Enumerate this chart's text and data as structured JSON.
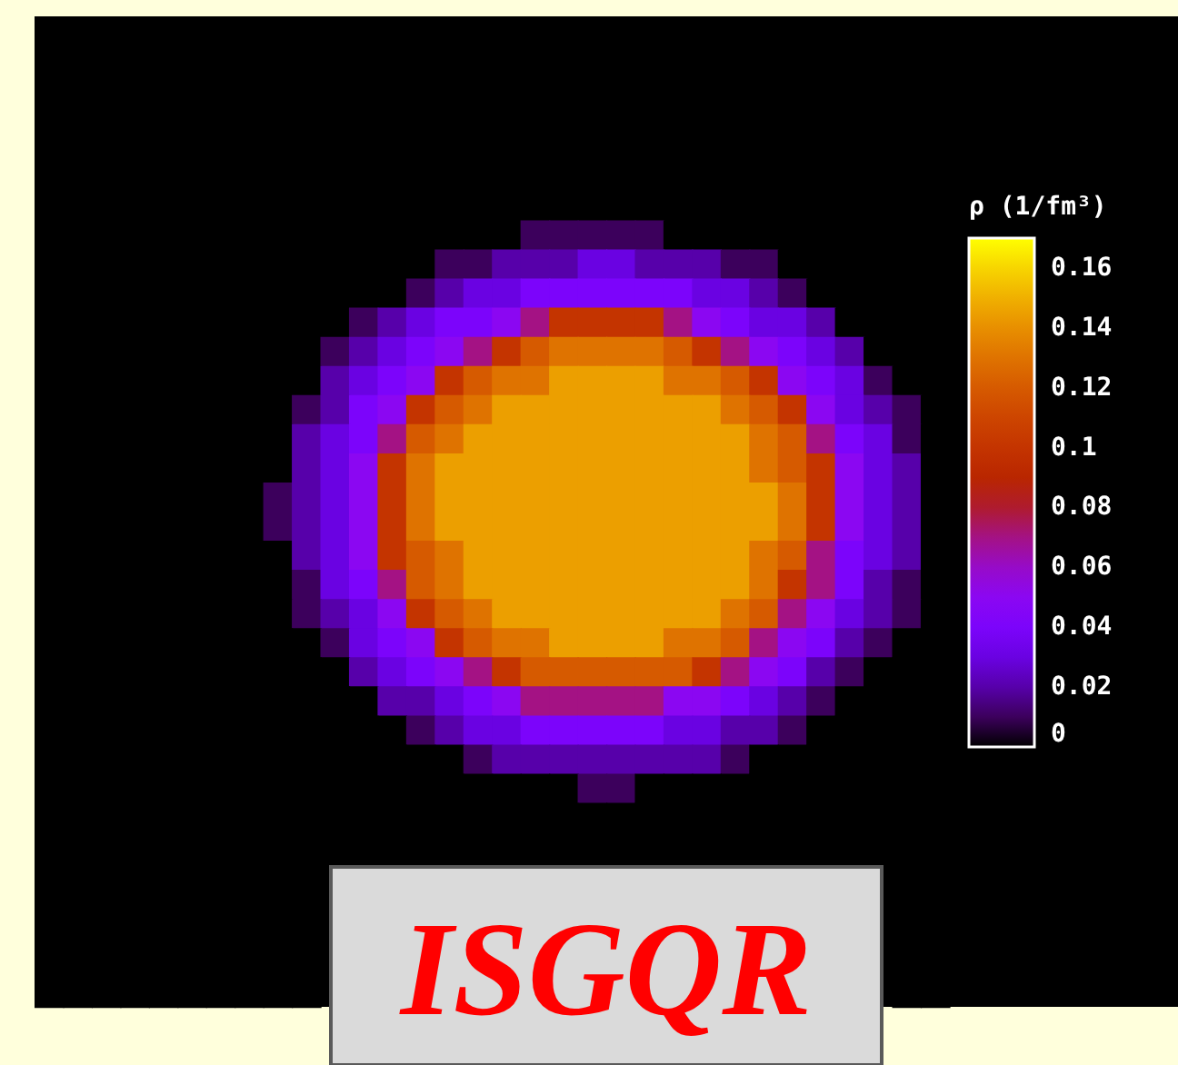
{
  "chart_data": {
    "type": "heatmap",
    "categories": [
      null,
      null,
      null,
      null,
      null,
      null,
      null,
      null,
      null,
      null,
      null,
      null,
      null,
      null,
      null,
      null,
      null,
      null,
      null,
      null,
      null,
      null,
      null,
      null,
      null,
      null,
      null,
      null,
      null,
      null,
      null,
      null
    ],
    "y_categories": [
      null,
      null,
      null,
      null,
      null,
      null,
      null,
      null,
      null,
      null,
      null,
      null,
      null,
      null,
      null,
      null,
      null,
      null,
      null,
      null,
      null,
      null,
      null,
      null,
      null,
      null,
      null,
      null,
      null,
      null,
      null,
      null,
      null,
      null
    ],
    "cells": [
      [
        0,
        0,
        0,
        0,
        0,
        0,
        0,
        0,
        0,
        0,
        0,
        0,
        0,
        0,
        0,
        0,
        0,
        0,
        0,
        0,
        0,
        0,
        0,
        0,
        0,
        0,
        0,
        0,
        0,
        0,
        0,
        0
      ],
      [
        0,
        0,
        0,
        0,
        0,
        0,
        0,
        0,
        0,
        0,
        0,
        0,
        0,
        0,
        0,
        0,
        0,
        0,
        0,
        0,
        0,
        0,
        0,
        0,
        0,
        0,
        0,
        0,
        0,
        0,
        0,
        0
      ],
      [
        0,
        0,
        0,
        0,
        0,
        0,
        0,
        0,
        0,
        0,
        0,
        0,
        0,
        0,
        0,
        0,
        0,
        0,
        0,
        0,
        0,
        0,
        0,
        0,
        0,
        0,
        0,
        0,
        0,
        0,
        0,
        0
      ],
      [
        0,
        0,
        0,
        0,
        0,
        0,
        0,
        0,
        0,
        0,
        0,
        0,
        0,
        0,
        0,
        0,
        0,
        0,
        0,
        0,
        0,
        0,
        0,
        0,
        0,
        0,
        0,
        0,
        0,
        0,
        0,
        0
      ],
      [
        0,
        0,
        0,
        0,
        0,
        0,
        0,
        0,
        0,
        0,
        0,
        0,
        0,
        0,
        0,
        0,
        0,
        0,
        0,
        0,
        0,
        0,
        0,
        0,
        0,
        0,
        0,
        0,
        0,
        0,
        0,
        0
      ],
      [
        0,
        0,
        0,
        0,
        0,
        0,
        0,
        0,
        0,
        0,
        0,
        0,
        0,
        0,
        0,
        0,
        0,
        0,
        0,
        0,
        0,
        0,
        0,
        0,
        0,
        0,
        0,
        0,
        0,
        0,
        0,
        0
      ],
      [
        0,
        0,
        0,
        0,
        0,
        0,
        0,
        0,
        0,
        0,
        0,
        0,
        0,
        0,
        0,
        0,
        0,
        0,
        0,
        0,
        0,
        0,
        0,
        0,
        0,
        0,
        0,
        0,
        0,
        0,
        0,
        0
      ],
      [
        0,
        0,
        0,
        0,
        0,
        0,
        0,
        0,
        0,
        0,
        0,
        0,
        0,
        0,
        0,
        0,
        0,
        0.01,
        0.01,
        0.01,
        0.01,
        0.01,
        0,
        0,
        0,
        0,
        0,
        0,
        0,
        0,
        0,
        0
      ],
      [
        0,
        0,
        0,
        0,
        0,
        0,
        0,
        0,
        0,
        0,
        0,
        0,
        0,
        0,
        0.01,
        0.01,
        0.02,
        0.02,
        0.02,
        0.03,
        0.03,
        0.02,
        0.02,
        0.02,
        0.01,
        0.01,
        0,
        0,
        0,
        0,
        0,
        0
      ],
      [
        0,
        0,
        0,
        0,
        0,
        0,
        0,
        0,
        0,
        0,
        0,
        0,
        0,
        0.01,
        0.02,
        0.03,
        0.03,
        0.04,
        0.04,
        0.04,
        0.04,
        0.04,
        0.04,
        0.03,
        0.03,
        0.02,
        0.01,
        0,
        0,
        0,
        0,
        0
      ],
      [
        0,
        0,
        0,
        0,
        0,
        0,
        0,
        0,
        0,
        0,
        0,
        0.01,
        0.02,
        0.03,
        0.04,
        0.04,
        0.05,
        0.07,
        0.1,
        0.1,
        0.1,
        0.1,
        0.07,
        0.05,
        0.04,
        0.03,
        0.03,
        0.02,
        0,
        0,
        0,
        0
      ],
      [
        0,
        0,
        0,
        0,
        0,
        0,
        0,
        0,
        0,
        0,
        0.01,
        0.02,
        0.03,
        0.04,
        0.05,
        0.07,
        0.1,
        0.12,
        0.13,
        0.13,
        0.13,
        0.13,
        0.12,
        0.1,
        0.07,
        0.05,
        0.04,
        0.03,
        0.02,
        0,
        0,
        0
      ],
      [
        0,
        0,
        0,
        0,
        0,
        0,
        0,
        0,
        0,
        0,
        0.02,
        0.03,
        0.04,
        0.05,
        0.1,
        0.12,
        0.13,
        0.13,
        0.145,
        0.145,
        0.145,
        0.145,
        0.13,
        0.13,
        0.12,
        0.1,
        0.05,
        0.04,
        0.03,
        0.01,
        0,
        0
      ],
      [
        0,
        0,
        0,
        0,
        0,
        0,
        0,
        0,
        0,
        0.01,
        0.02,
        0.04,
        0.05,
        0.1,
        0.12,
        0.13,
        0.145,
        0.145,
        0.145,
        0.145,
        0.145,
        0.145,
        0.145,
        0.145,
        0.13,
        0.12,
        0.1,
        0.05,
        0.03,
        0.02,
        0.01,
        0
      ],
      [
        0,
        0,
        0,
        0,
        0,
        0,
        0,
        0,
        0,
        0.02,
        0.03,
        0.04,
        0.07,
        0.12,
        0.13,
        0.145,
        0.145,
        0.145,
        0.145,
        0.145,
        0.145,
        0.145,
        0.145,
        0.145,
        0.145,
        0.13,
        0.12,
        0.07,
        0.04,
        0.03,
        0.01,
        0
      ],
      [
        0,
        0,
        0,
        0,
        0,
        0,
        0,
        0,
        0,
        0.02,
        0.03,
        0.05,
        0.1,
        0.13,
        0.145,
        0.145,
        0.145,
        0.145,
        0.145,
        0.145,
        0.145,
        0.145,
        0.145,
        0.145,
        0.145,
        0.13,
        0.12,
        0.1,
        0.05,
        0.03,
        0.02,
        0
      ],
      [
        0,
        0,
        0,
        0,
        0,
        0,
        0,
        0,
        0.01,
        0.02,
        0.03,
        0.05,
        0.1,
        0.13,
        0.145,
        0.145,
        0.145,
        0.145,
        0.145,
        0.145,
        0.145,
        0.145,
        0.145,
        0.145,
        0.145,
        0.145,
        0.13,
        0.1,
        0.05,
        0.03,
        0.02,
        0
      ],
      [
        0,
        0,
        0,
        0,
        0,
        0,
        0,
        0,
        0.01,
        0.02,
        0.03,
        0.05,
        0.1,
        0.13,
        0.145,
        0.145,
        0.145,
        0.145,
        0.145,
        0.145,
        0.145,
        0.145,
        0.145,
        0.145,
        0.145,
        0.145,
        0.13,
        0.1,
        0.05,
        0.03,
        0.02,
        0
      ],
      [
        0,
        0,
        0,
        0,
        0,
        0,
        0,
        0,
        0,
        0.02,
        0.03,
        0.05,
        0.1,
        0.12,
        0.13,
        0.145,
        0.145,
        0.145,
        0.145,
        0.145,
        0.145,
        0.145,
        0.145,
        0.145,
        0.145,
        0.13,
        0.12,
        0.07,
        0.04,
        0.03,
        0.02,
        0
      ],
      [
        0,
        0,
        0,
        0,
        0,
        0,
        0,
        0,
        0,
        0.01,
        0.03,
        0.04,
        0.07,
        0.12,
        0.13,
        0.145,
        0.145,
        0.145,
        0.145,
        0.145,
        0.145,
        0.145,
        0.145,
        0.145,
        0.145,
        0.13,
        0.1,
        0.07,
        0.04,
        0.02,
        0.01,
        0
      ],
      [
        0,
        0,
        0,
        0,
        0,
        0,
        0,
        0,
        0,
        0.01,
        0.02,
        0.03,
        0.05,
        0.1,
        0.12,
        0.13,
        0.145,
        0.145,
        0.145,
        0.145,
        0.145,
        0.145,
        0.145,
        0.145,
        0.13,
        0.12,
        0.07,
        0.05,
        0.03,
        0.02,
        0.01,
        0
      ],
      [
        0,
        0,
        0,
        0,
        0,
        0,
        0,
        0,
        0,
        0,
        0.01,
        0.03,
        0.04,
        0.05,
        0.1,
        0.12,
        0.13,
        0.13,
        0.145,
        0.145,
        0.145,
        0.145,
        0.13,
        0.13,
        0.12,
        0.07,
        0.05,
        0.04,
        0.02,
        0.01,
        0,
        0
      ],
      [
        0,
        0,
        0,
        0,
        0,
        0,
        0,
        0,
        0,
        0,
        0,
        0.02,
        0.03,
        0.04,
        0.05,
        0.07,
        0.1,
        0.12,
        0.12,
        0.12,
        0.12,
        0.12,
        0.12,
        0.1,
        0.07,
        0.05,
        0.04,
        0.02,
        0.01,
        0,
        0,
        0
      ],
      [
        0,
        0,
        0,
        0,
        0,
        0,
        0,
        0,
        0,
        0,
        0,
        0,
        0.02,
        0.02,
        0.03,
        0.04,
        0.05,
        0.07,
        0.07,
        0.07,
        0.07,
        0.07,
        0.05,
        0.05,
        0.04,
        0.03,
        0.02,
        0.01,
        0,
        0,
        0,
        0
      ],
      [
        0,
        0,
        0,
        0,
        0,
        0,
        0,
        0,
        0,
        0,
        0,
        0,
        0,
        0.01,
        0.02,
        0.03,
        0.03,
        0.04,
        0.04,
        0.04,
        0.04,
        0.04,
        0.03,
        0.03,
        0.02,
        0.02,
        0.01,
        0,
        0,
        0,
        0,
        0
      ],
      [
        0,
        0,
        0,
        0,
        0,
        0,
        0,
        0,
        0,
        0,
        0,
        0,
        0,
        0,
        0,
        0.01,
        0.02,
        0.02,
        0.02,
        0.02,
        0.02,
        0.02,
        0.02,
        0.02,
        0.01,
        0,
        0,
        0,
        0,
        0,
        0,
        0
      ],
      [
        0,
        0,
        0,
        0,
        0,
        0,
        0,
        0,
        0,
        0,
        0,
        0,
        0,
        0,
        0,
        0,
        0,
        0,
        0,
        0.01,
        0.01,
        0,
        0,
        0,
        0,
        0,
        0,
        0,
        0,
        0,
        0,
        0
      ],
      [
        0,
        0,
        0,
        0,
        0,
        0,
        0,
        0,
        0,
        0,
        0,
        0,
        0,
        0,
        0,
        0,
        0,
        0,
        0,
        0,
        0,
        0,
        0,
        0,
        0,
        0,
        0,
        0,
        0,
        0,
        0,
        0
      ],
      [
        0,
        0,
        0,
        0,
        0,
        0,
        0,
        0,
        0,
        0,
        0,
        0,
        0,
        0,
        0,
        0,
        0,
        0,
        0,
        0,
        0,
        0,
        0,
        0,
        0,
        0,
        0,
        0,
        0,
        0,
        0,
        0
      ],
      [
        0,
        0,
        0,
        0,
        0,
        0,
        0,
        0,
        0,
        0,
        null,
        null,
        null,
        null,
        null,
        null,
        null,
        null,
        null,
        null,
        null,
        null,
        null,
        null,
        null,
        null,
        null,
        null,
        null,
        null,
        0,
        0
      ],
      [
        0,
        0,
        0,
        0,
        0,
        0,
        0,
        0,
        0,
        0,
        null,
        null,
        null,
        null,
        null,
        null,
        null,
        null,
        null,
        null,
        null,
        null,
        null,
        null,
        null,
        null,
        null,
        null,
        null,
        null,
        0,
        0
      ],
      [
        0,
        0,
        0,
        0,
        0,
        0,
        0,
        0,
        0,
        0,
        null,
        null,
        null,
        null,
        null,
        null,
        null,
        null,
        null,
        null,
        null,
        null,
        null,
        null,
        null,
        null,
        null,
        null,
        null,
        null,
        0,
        0
      ],
      [
        0,
        0,
        0,
        0,
        0,
        0,
        0,
        0,
        0,
        0,
        null,
        null,
        null,
        null,
        null,
        null,
        null,
        null,
        null,
        null,
        null,
        null,
        null,
        null,
        null,
        null,
        null,
        null,
        null,
        null,
        0,
        0
      ],
      [
        0,
        0,
        0,
        0,
        0,
        0,
        0,
        0,
        0,
        0,
        null,
        null,
        null,
        null,
        null,
        null,
        null,
        null,
        null,
        null,
        null,
        null,
        null,
        null,
        null,
        null,
        null,
        null,
        null,
        null,
        0,
        0
      ]
    ],
    "clim": [
      0,
      0.17
    ],
    "cticks": [
      0,
      0.02,
      0.04,
      0.06,
      0.08,
      0.1,
      0.12,
      0.14,
      0.16
    ],
    "clabel": "ρ (1/fm³)",
    "annotations": [
      "ISGQR"
    ]
  }
}
